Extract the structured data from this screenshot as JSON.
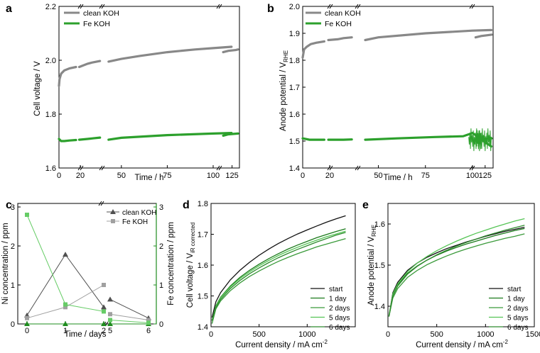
{
  "chart_data": [
    {
      "panel": "a",
      "type": "line",
      "xlabel": "Time / h",
      "ylabel": "Cell voltage / V",
      "ylim": [
        1.6,
        2.2
      ],
      "yticks": [
        "1.6",
        "1.8",
        "2.0",
        "2.2"
      ],
      "xticks": [
        "0",
        "20",
        "50",
        "75",
        "100",
        "125"
      ],
      "axis_breaks": "after 20 h, after 40 h and after 110 h",
      "series": [
        {
          "name": "clean KOH",
          "color": "#888888",
          "segments": [
            [
              [
                0,
                1.905
              ],
              [
                0.5,
                1.93
              ],
              [
                2,
                1.95
              ],
              [
                5,
                1.962
              ],
              [
                10,
                1.97
              ],
              [
                16,
                1.975
              ]
            ],
            [
              [
                19,
                1.975
              ],
              [
                25,
                1.987
              ],
              [
                30,
                1.992
              ],
              [
                37,
                1.997
              ]
            ],
            [
              [
                43,
                1.995
              ],
              [
                50,
                2.005
              ],
              [
                60,
                2.016
              ],
              [
                75,
                2.03
              ],
              [
                90,
                2.04
              ],
              [
                100,
                2.045
              ],
              [
                110,
                2.05
              ]
            ],
            [
              [
                113,
                2.03
              ],
              [
                120,
                2.035
              ],
              [
                130,
                2.038
              ],
              [
                133,
                2.04
              ]
            ]
          ]
        },
        {
          "name": "Fe KOH",
          "color": "#2ca02c",
          "segments": [
            [
              [
                0,
                1.708
              ],
              [
                2,
                1.7
              ],
              [
                5,
                1.7
              ],
              [
                10,
                1.702
              ],
              [
                16,
                1.704
              ]
            ],
            [
              [
                19,
                1.705
              ],
              [
                25,
                1.708
              ],
              [
                30,
                1.71
              ],
              [
                37,
                1.713
              ]
            ],
            [
              [
                43,
                1.705
              ],
              [
                50,
                1.712
              ],
              [
                75,
                1.722
              ],
              [
                100,
                1.728
              ],
              [
                110,
                1.73
              ]
            ],
            [
              [
                113,
                1.72
              ],
              [
                120,
                1.725
              ],
              [
                133,
                1.728
              ]
            ]
          ]
        }
      ]
    },
    {
      "panel": "b",
      "type": "line",
      "xlabel": "Time / h",
      "ylabel": "Anode potential / V",
      "ylabel_sub": "RHE",
      "ylim": [
        1.4,
        2.0
      ],
      "yticks": [
        "1.4",
        "1.5",
        "1.6",
        "1.7",
        "1.8",
        "1.9",
        "2.0"
      ],
      "xticks": [
        "0",
        "20",
        "50",
        "75",
        "100",
        "125"
      ],
      "series": [
        {
          "name": "clean KOH",
          "color": "#888888",
          "segments": [
            [
              [
                0,
                1.81
              ],
              [
                1,
                1.84
              ],
              [
                3,
                1.85
              ],
              [
                6,
                1.86
              ],
              [
                10,
                1.865
              ],
              [
                16,
                1.87
              ]
            ],
            [
              [
                19,
                1.875
              ],
              [
                25,
                1.878
              ],
              [
                30,
                1.882
              ],
              [
                37,
                1.885
              ]
            ],
            [
              [
                43,
                1.875
              ],
              [
                50,
                1.885
              ],
              [
                75,
                1.9
              ],
              [
                100,
                1.91
              ],
              [
                110,
                1.912
              ]
            ],
            [
              [
                113,
                1.885
              ],
              [
                120,
                1.89
              ],
              [
                133,
                1.895
              ]
            ]
          ]
        },
        {
          "name": "Fe KOH",
          "color": "#2ca02c",
          "segments": [
            [
              [
                0,
                1.51
              ],
              [
                5,
                1.505
              ],
              [
                16,
                1.505
              ]
            ],
            [
              [
                19,
                1.505
              ],
              [
                30,
                1.505
              ],
              [
                37,
                1.506
              ]
            ],
            [
              [
                43,
                1.505
              ],
              [
                60,
                1.51
              ],
              [
                80,
                1.515
              ],
              [
                95,
                1.518
              ],
              [
                100,
                1.53
              ],
              [
                110,
                1.48
              ]
            ],
            [
              [
                113,
                1.505
              ],
              [
                120,
                1.51
              ],
              [
                133,
                1.51
              ]
            ]
          ]
        }
      ]
    },
    {
      "panel": "c",
      "type": "line",
      "xlabel": "Time / days",
      "ylabel_left": "Ni concentration / ppm",
      "ylabel_right": "Fe concentration / ppm",
      "ylim": [
        0,
        3
      ],
      "yticks": [
        "0",
        "1",
        "2",
        "3"
      ],
      "xticks": [
        "0",
        "1",
        "2",
        "5",
        "6"
      ],
      "series": [
        {
          "name": "clean KOH (Ni)",
          "color": "#505050",
          "marker": "triangle",
          "axis": "left",
          "segments": [
            [
              [
                0,
                0.22
              ],
              [
                1,
                1.78
              ],
              [
                2,
                0.43
              ]
            ],
            [
              [
                5,
                0.63
              ],
              [
                6,
                0.15
              ]
            ]
          ]
        },
        {
          "name": "Fe KOH (Ni)",
          "color": "#a0a0a0",
          "marker": "square",
          "axis": "left",
          "segments": [
            [
              [
                0,
                0.15
              ],
              [
                1,
                0.43
              ],
              [
                2,
                1.0
              ]
            ],
            [
              [
                5,
                0.25
              ],
              [
                6,
                0.1
              ]
            ]
          ]
        },
        {
          "name": "clean KOH (Fe)",
          "color": "#1e8c1e",
          "marker": "triangle",
          "axis": "right",
          "segments": [
            [
              [
                0,
                0.0
              ],
              [
                1,
                0.0
              ],
              [
                2,
                0.0
              ]
            ],
            [
              [
                5,
                0.0
              ],
              [
                6,
                0.0
              ]
            ]
          ]
        },
        {
          "name": "Fe KOH (Fe)",
          "color": "#66cc66",
          "marker": "square",
          "axis": "right",
          "segments": [
            [
              [
                0,
                2.8
              ],
              [
                1,
                0.5
              ],
              [
                2,
                0.32
              ]
            ],
            [
              [
                5,
                0.1
              ],
              [
                6,
                0.03
              ]
            ]
          ]
        }
      ],
      "legend": [
        "clean KOH",
        "Fe KOH"
      ]
    },
    {
      "panel": "d",
      "type": "line",
      "xlabel": "Current density / mA cm",
      "xlabel_sup": "-2",
      "ylabel": "Cell voltage / V",
      "ylabel_sub": "iR corrected",
      "xlim": [
        0,
        1500
      ],
      "ylim": [
        1.4,
        1.8
      ],
      "xticks": [
        "0",
        "500",
        "1000"
      ],
      "yticks": [
        "1.4",
        "1.5",
        "1.6",
        "1.7",
        "1.8"
      ],
      "x": [
        10,
        50,
        100,
        200,
        300,
        400,
        500,
        600,
        700,
        800,
        900,
        1000,
        1100,
        1200,
        1300,
        1400
      ],
      "series": [
        {
          "name": "start",
          "color": "#111111",
          "values": [
            1.43,
            1.481,
            1.511,
            1.552,
            1.583,
            1.609,
            1.632,
            1.652,
            1.67,
            1.686,
            1.701,
            1.714,
            1.727,
            1.739,
            1.75,
            1.76
          ]
        },
        {
          "name": "1 day",
          "color": "#1b7a1b",
          "values": [
            1.42,
            1.468,
            1.496,
            1.532,
            1.56,
            1.583,
            1.603,
            1.621,
            1.637,
            1.652,
            1.665,
            1.677,
            1.689,
            1.699,
            1.709,
            1.718
          ]
        },
        {
          "name": "2 days",
          "color": "#3a9a3a",
          "values": [
            1.41,
            1.458,
            1.484,
            1.517,
            1.542,
            1.563,
            1.581,
            1.597,
            1.612,
            1.625,
            1.637,
            1.648,
            1.659,
            1.668,
            1.677,
            1.686
          ]
        },
        {
          "name": "5 days",
          "color": "#55c455",
          "values": [
            1.42,
            1.467,
            1.494,
            1.529,
            1.556,
            1.578,
            1.598,
            1.615,
            1.631,
            1.645,
            1.658,
            1.67,
            1.681,
            1.692,
            1.701,
            1.71
          ]
        },
        {
          "name": "6 days",
          "color": "#2e8b2e",
          "values": [
            1.42,
            1.463,
            1.489,
            1.524,
            1.55,
            1.572,
            1.591,
            1.608,
            1.624,
            1.638,
            1.651,
            1.663,
            1.675,
            1.686,
            1.697,
            1.706
          ]
        }
      ]
    },
    {
      "panel": "e",
      "type": "line",
      "xlabel": "Current density / mA cm",
      "xlabel_sup": "-2",
      "ylabel": "Anode potential / V",
      "ylabel_sub": "RHE",
      "xlim": [
        0,
        1500
      ],
      "ylim": [
        1.35,
        1.65
      ],
      "xticks": [
        "0",
        "500",
        "1000",
        "1500"
      ],
      "yticks": [
        "1.4",
        "1.5",
        "1.6"
      ],
      "x": [
        10,
        50,
        100,
        200,
        300,
        400,
        500,
        600,
        700,
        800,
        900,
        1000,
        1100,
        1200,
        1300,
        1400
      ],
      "series": [
        {
          "name": "start",
          "color": "#111111",
          "values": [
            1.375,
            1.433,
            1.458,
            1.487,
            1.505,
            1.519,
            1.53,
            1.54,
            1.548,
            1.556,
            1.563,
            1.57,
            1.576,
            1.582,
            1.587,
            1.592
          ]
        },
        {
          "name": "1 day",
          "color": "#1b7a1b",
          "values": [
            1.375,
            1.428,
            1.452,
            1.48,
            1.498,
            1.512,
            1.524,
            1.534,
            1.543,
            1.551,
            1.558,
            1.565,
            1.572,
            1.578,
            1.584,
            1.589
          ]
        },
        {
          "name": "2 days",
          "color": "#3a9a3a",
          "values": [
            1.375,
            1.42,
            1.443,
            1.47,
            1.487,
            1.501,
            1.512,
            1.522,
            1.531,
            1.539,
            1.546,
            1.553,
            1.559,
            1.565,
            1.57,
            1.576
          ]
        },
        {
          "name": "5 days",
          "color": "#55c455",
          "values": [
            1.375,
            1.43,
            1.454,
            1.484,
            1.505,
            1.521,
            1.535,
            1.547,
            1.558,
            1.568,
            1.577,
            1.585,
            1.593,
            1.6,
            1.607,
            1.613
          ]
        },
        {
          "name": "6 days",
          "color": "#2e8b2e",
          "values": [
            1.375,
            1.425,
            1.449,
            1.478,
            1.497,
            1.512,
            1.525,
            1.536,
            1.546,
            1.555,
            1.563,
            1.571,
            1.578,
            1.585,
            1.591,
            1.597
          ]
        }
      ]
    }
  ]
}
